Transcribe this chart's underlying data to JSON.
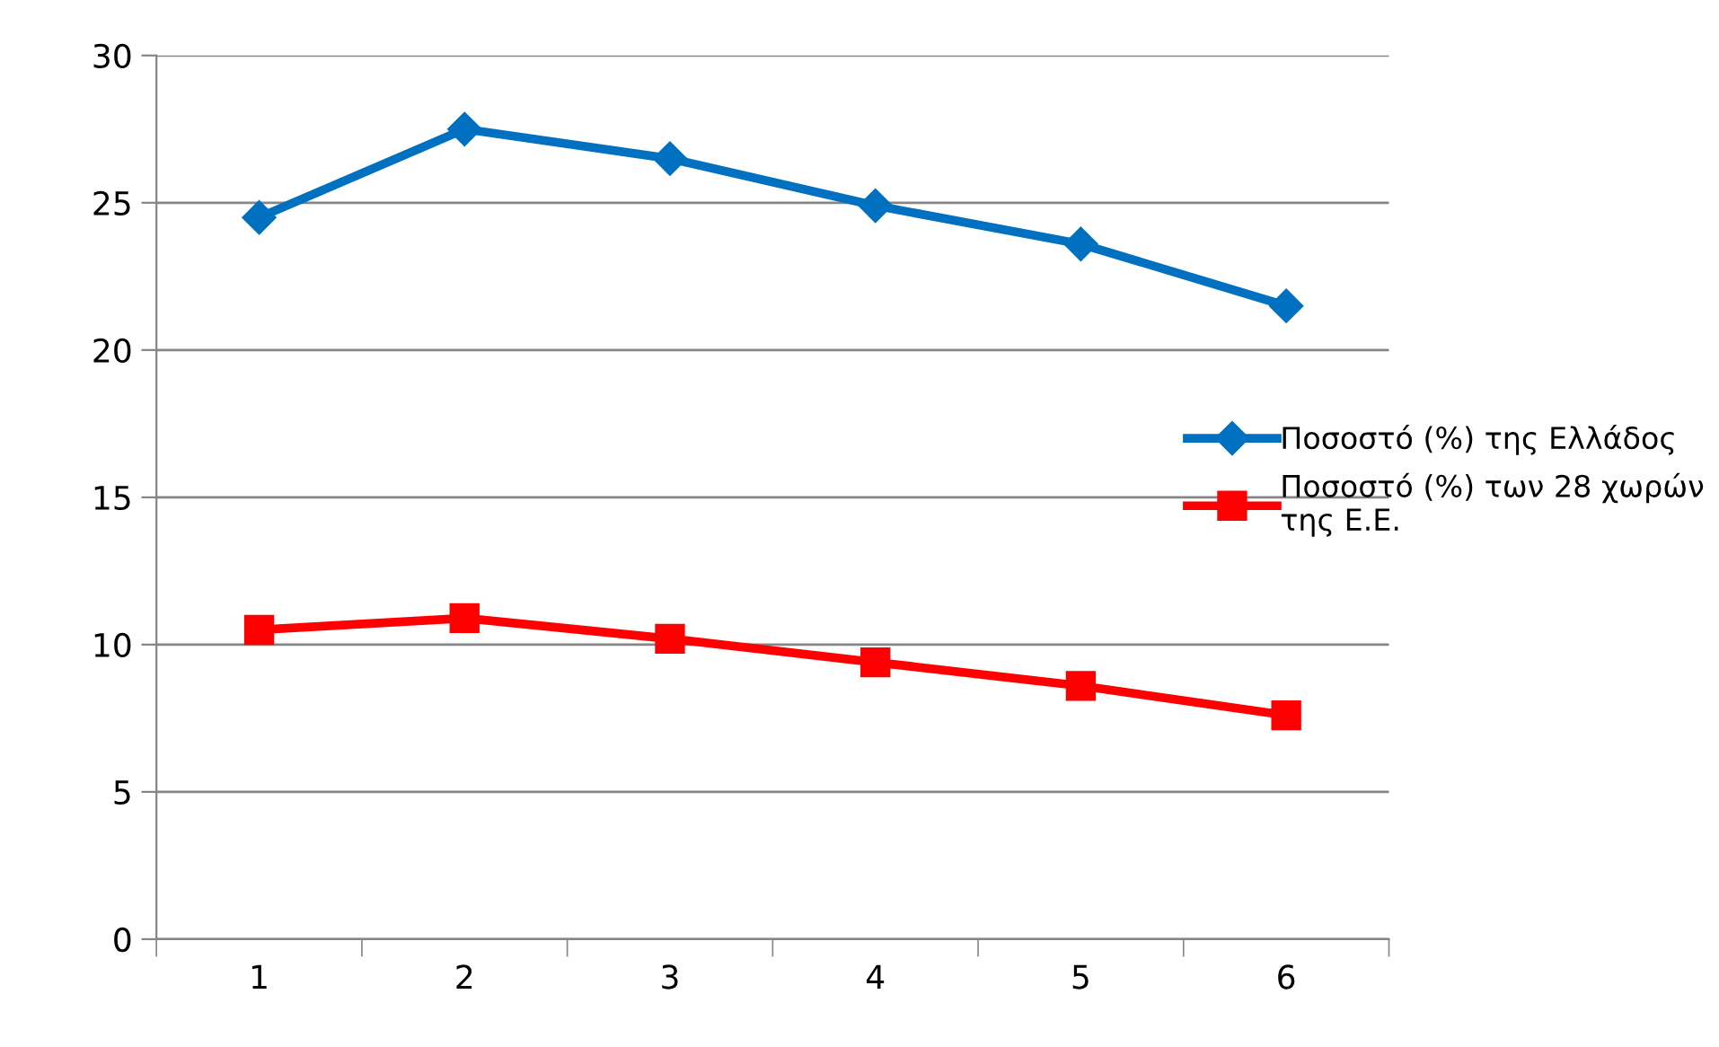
{
  "chart_data": {
    "type": "line",
    "categories": [
      "1",
      "2",
      "3",
      "4",
      "5",
      "6"
    ],
    "series": [
      {
        "name": "Ποσοστό (%) της Ελλάδος",
        "color": "#0070c0",
        "values": [
          24.5,
          27.5,
          26.5,
          24.9,
          23.6,
          21.5
        ],
        "marker": "diamond"
      },
      {
        "name": "Ποσοστό (%) των 28 χωρών της Ε.Ε.",
        "color": "#ff0000",
        "values": [
          10.5,
          10.9,
          10.2,
          9.4,
          8.6,
          7.6
        ],
        "marker": "square"
      }
    ],
    "ylim": [
      0,
      30
    ],
    "yticks": [
      0,
      5,
      10,
      15,
      20,
      25,
      30
    ],
    "grid": "y",
    "legend": "right",
    "line_style": "solid"
  }
}
